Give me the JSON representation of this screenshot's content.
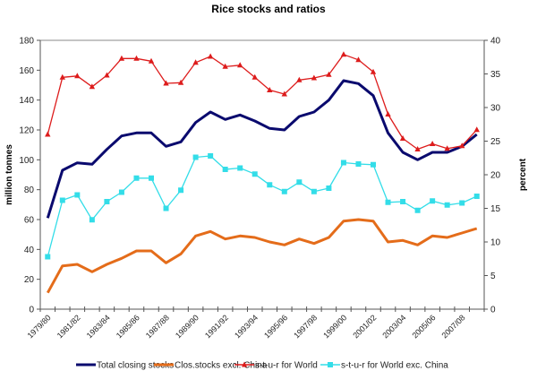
{
  "chart_data": {
    "type": "line",
    "title": "Rice stocks and ratios",
    "ylabel": "million tonnes",
    "y2label": "percent",
    "ylim": [
      0,
      180
    ],
    "yticks": [
      0,
      20,
      40,
      60,
      80,
      100,
      120,
      140,
      160,
      180
    ],
    "y2lim": [
      0,
      40
    ],
    "y2ticks": [
      0,
      5,
      10,
      15,
      20,
      25,
      30,
      35,
      40
    ],
    "x": [
      "1979/80",
      "1980/81",
      "1981/82",
      "1982/83",
      "1983/84",
      "1984/85",
      "1985/86",
      "1986/87",
      "1987/88",
      "1988/89",
      "1989/90",
      "1990/91",
      "1991/92",
      "1992/93",
      "1993/94",
      "1994/95",
      "1995/96",
      "1996/97",
      "1997/98",
      "1998/99",
      "1999/00",
      "2000/01",
      "2001/02",
      "2002/03",
      "2003/04",
      "2004/05",
      "2005/06",
      "2006/07",
      "2007/08",
      "2008/09"
    ],
    "xtick_labels": [
      "1979/80",
      "1981/82",
      "1983/84",
      "1985/86",
      "1987/88",
      "1989/90",
      "1991/92",
      "1993/94",
      "1995/96",
      "1997/98",
      "1999/00",
      "2001/02",
      "2003/04",
      "2005/06",
      "2007/08"
    ],
    "grid": false,
    "legend_position": "bottom",
    "series": [
      {
        "name": "Total closing stocks",
        "axis": "left",
        "color": "#0a0a6e",
        "marker": "none",
        "values": [
          61,
          93,
          98,
          97,
          107,
          116,
          118,
          118,
          109,
          112,
          125,
          132,
          127,
          130,
          126,
          121,
          120,
          129,
          132,
          140,
          153,
          151,
          143,
          118,
          105,
          100,
          105,
          105,
          109,
          117
        ]
      },
      {
        "name": "Clos.stocks excl. China",
        "axis": "left",
        "color": "#e46c1a",
        "marker": "none",
        "values": [
          11,
          29,
          30,
          25,
          30,
          34,
          39,
          39,
          31,
          37,
          49,
          52,
          47,
          49,
          48,
          45,
          43,
          47,
          44,
          48,
          59,
          60,
          59,
          45,
          46,
          43,
          49,
          48,
          51,
          54
        ]
      },
      {
        "name": "s-t-u-r for World",
        "axis": "right",
        "color": "#dd1c1c",
        "marker": "triangle",
        "values": [
          26.0,
          34.5,
          34.7,
          33.1,
          34.8,
          37.3,
          37.3,
          36.9,
          33.6,
          33.7,
          36.7,
          37.6,
          36.1,
          36.3,
          34.5,
          32.6,
          32.0,
          34.1,
          34.4,
          34.9,
          37.9,
          37.1,
          35.3,
          29.0,
          25.4,
          23.8,
          24.6,
          23.9,
          24.3,
          26.7
        ]
      },
      {
        "name": "s-t-u-r for World exc. China",
        "axis": "right",
        "color": "#33dde8",
        "marker": "square",
        "values": [
          7.8,
          16.2,
          17.0,
          13.3,
          16.0,
          17.4,
          19.5,
          19.5,
          15.0,
          17.7,
          22.6,
          22.8,
          20.8,
          21.0,
          20.1,
          18.5,
          17.5,
          18.9,
          17.5,
          18.0,
          21.8,
          21.6,
          21.5,
          15.9,
          16.0,
          14.7,
          16.1,
          15.5,
          15.8,
          16.8
        ]
      }
    ]
  }
}
